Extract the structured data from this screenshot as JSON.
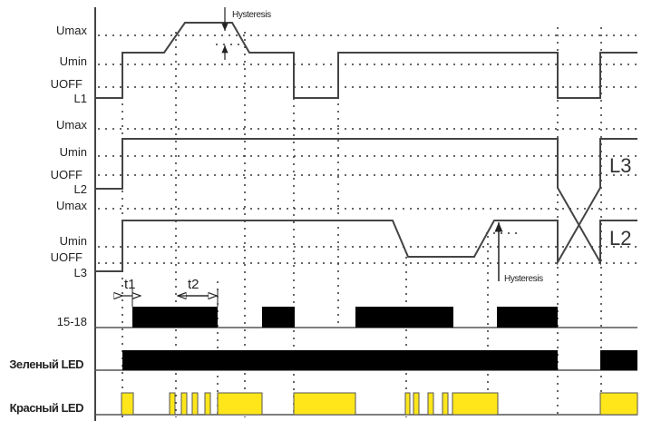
{
  "labels": {
    "l1": {
      "umax": "Umax",
      "umin": "Umin",
      "uoff": "UOFF",
      "name": "L1"
    },
    "l2": {
      "umax": "Umax",
      "umin": "Umin",
      "uoff": "UOFF",
      "name": "L2"
    },
    "l3": {
      "umax": "Umax",
      "umin": "Umin",
      "uoff": "UOFF",
      "name": "L3"
    },
    "relay": "15-18",
    "green_led": "Зеленый LED",
    "red_led": "Красный LED"
  },
  "annotations": {
    "hysteresis_top": "Hysteresis",
    "hysteresis_bottom": "Hysteresis",
    "t1": "t1",
    "t2": "t2",
    "right_l3": "L3",
    "right_l2": "L2"
  },
  "colors": {
    "signal": "#444444",
    "relay_on": "#000000",
    "green_led_on": "#000000",
    "red_led_on": "#ffe61a",
    "red_led_edge": "#555555"
  }
}
